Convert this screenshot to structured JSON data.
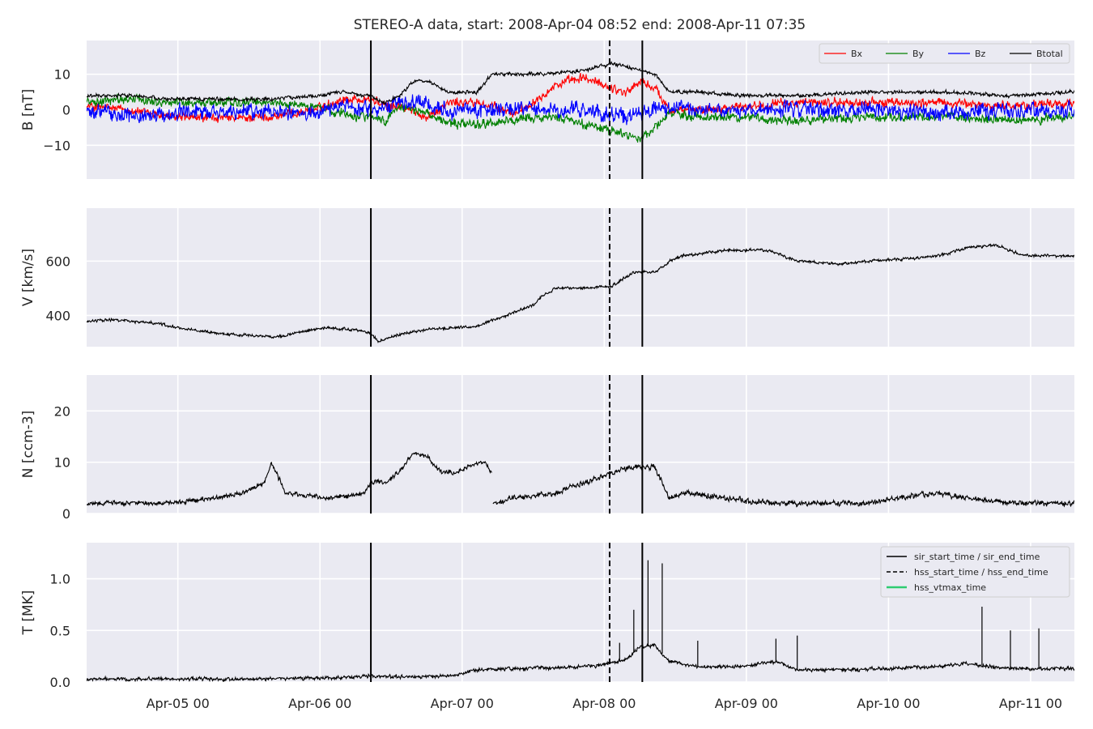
{
  "title": "STEREO-A data, start: 2008-Apr-04 08:52  end: 2008-Apr-11 07:35",
  "chart_data": [
    {
      "type": "line",
      "id": "b",
      "ylabel": "B [nT]",
      "ylim": [
        -19.5,
        19.5
      ],
      "yticks": [
        -10,
        0,
        10
      ],
      "ytick_labels": [
        "−10",
        "0",
        "10"
      ],
      "grid": true,
      "legend_position": "top-right",
      "series": [
        {
          "name": "Bx",
          "color": "#ff0000",
          "noise": 1.5,
          "x": [
            0,
            0.3,
            0.6,
            1.0,
            1.3,
            1.6,
            1.8,
            2.0,
            2.1,
            2.2,
            2.4,
            2.55,
            2.75,
            3.0,
            3.1,
            3.3,
            3.5,
            3.7,
            3.8,
            3.9,
            4.0,
            4.1,
            4.3,
            4.6,
            5.0,
            5.5,
            6.0,
            6.5,
            6.95
          ],
          "y": [
            1,
            0,
            -2,
            -2.5,
            -2,
            0,
            3,
            3,
            1,
            1,
            -2,
            2,
            2,
            -1,
            1,
            7,
            9,
            6,
            5,
            8,
            6,
            0,
            0,
            1,
            2,
            2,
            2,
            1,
            2
          ]
        },
        {
          "name": "By",
          "color": "#008000",
          "noise": 1.5,
          "x": [
            0,
            0.3,
            0.6,
            1.0,
            1.3,
            1.6,
            1.8,
            2.0,
            2.1,
            2.2,
            2.4,
            2.55,
            2.75,
            3.0,
            3.3,
            3.5,
            3.7,
            3.8,
            3.9,
            4.0,
            4.1,
            4.3,
            4.6,
            5.0,
            5.5,
            6.0,
            6.5,
            6.95
          ],
          "y": [
            2,
            3,
            2,
            2,
            2,
            1,
            -1,
            -2,
            -3,
            1,
            -1,
            -4,
            -4,
            -3,
            -2,
            -4,
            -6,
            -7,
            -8,
            -5,
            -1,
            -2,
            -2,
            -3,
            -2,
            -2,
            -3,
            -2
          ]
        },
        {
          "name": "Bz",
          "color": "#0000ff",
          "noise": 2.5,
          "x": [
            0,
            0.3,
            0.6,
            1.0,
            1.3,
            1.6,
            1.8,
            2.0,
            2.1,
            2.2,
            2.4,
            2.55,
            2.75,
            3.0,
            3.3,
            3.5,
            3.8,
            4.0,
            4.1,
            4.3,
            4.6,
            5.0,
            5.5,
            6.0,
            6.5,
            6.95
          ],
          "y": [
            0,
            -2,
            -1,
            -1,
            0,
            -1,
            1,
            0,
            0,
            2,
            2,
            0,
            0,
            0,
            0,
            0,
            -2,
            0,
            0,
            0,
            0,
            0,
            0,
            -1,
            0,
            0
          ]
        },
        {
          "name": "Btotal",
          "color": "#000000",
          "noise": 0.6,
          "x": [
            0,
            0.3,
            0.6,
            1.0,
            1.3,
            1.6,
            1.8,
            2.0,
            2.1,
            2.2,
            2.3,
            2.4,
            2.55,
            2.75,
            2.85,
            3.0,
            3.2,
            3.5,
            3.7,
            3.9,
            4.0,
            4.1,
            4.3,
            4.6,
            5.0,
            5.5,
            6.0,
            6.5,
            6.95
          ],
          "y": [
            4,
            4,
            3,
            3,
            3,
            4,
            5,
            4,
            2,
            4,
            8,
            8,
            5,
            5,
            10,
            10,
            10,
            11,
            13,
            11,
            10,
            5,
            5,
            4,
            4,
            5,
            5,
            4,
            5
          ]
        }
      ]
    },
    {
      "type": "line",
      "id": "v",
      "ylabel": "V [km/s]",
      "ylim": [
        285,
        795
      ],
      "yticks": [
        400,
        600
      ],
      "ytick_labels": [
        "400",
        "600"
      ],
      "grid": true,
      "series": [
        {
          "color": "#000000",
          "noise": 6,
          "x": [
            0,
            0.2,
            0.5,
            0.7,
            1.0,
            1.35,
            1.5,
            1.7,
            1.9,
            2.0,
            2.05,
            2.2,
            2.4,
            2.6,
            2.75,
            2.9,
            3.0,
            3.15,
            3.2,
            3.3,
            3.5,
            3.7,
            3.85,
            4.0,
            4.1,
            4.2,
            4.5,
            4.8,
            5.0,
            5.3,
            5.5,
            5.8,
            6.0,
            6.2,
            6.4,
            6.6,
            6.95
          ],
          "y": [
            380,
            385,
            370,
            350,
            330,
            320,
            340,
            355,
            345,
            335,
            305,
            330,
            350,
            355,
            360,
            390,
            410,
            440,
            470,
            500,
            500,
            510,
            560,
            560,
            600,
            620,
            640,
            640,
            600,
            590,
            600,
            610,
            620,
            650,
            660,
            620,
            620
          ]
        }
      ]
    },
    {
      "type": "line",
      "id": "n",
      "ylabel": "N [ccm-3]",
      "ylim": [
        0,
        27
      ],
      "yticks": [
        0,
        10,
        20
      ],
      "ytick_labels": [
        "0",
        "10",
        "20"
      ],
      "grid": true,
      "series": [
        {
          "color": "#000000",
          "noise": 0.5,
          "x": [
            0,
            0.3,
            0.6,
            0.9,
            1.1,
            1.25,
            1.3,
            1.4,
            1.7,
            1.95,
            2.0,
            2.1,
            2.2,
            2.3,
            2.4,
            2.5,
            2.6,
            2.75,
            2.8,
            2.85
          ],
          "y": [
            2,
            2,
            2,
            3,
            4,
            6,
            10,
            4,
            3,
            4,
            6,
            6,
            8,
            12,
            11,
            8,
            8,
            10,
            10,
            8
          ]
        },
        {
          "color": "#000000",
          "noise": 0.6,
          "x": [
            2.86,
            3.0,
            3.3,
            3.6,
            3.8,
            4.0,
            4.1,
            4.2,
            4.5,
            4.8,
            5.0,
            5.3,
            5.5,
            5.7,
            6.0,
            6.2,
            6.5,
            6.95
          ],
          "y": [
            2,
            3,
            4,
            7,
            9,
            9,
            3,
            4,
            3,
            2,
            2,
            2,
            2,
            3,
            4,
            3,
            2,
            2
          ]
        }
      ]
    },
    {
      "type": "line",
      "id": "t",
      "ylabel": "T [MK]",
      "ylim": [
        0,
        1.35
      ],
      "yticks": [
        0.0,
        0.5,
        1.0
      ],
      "ytick_labels": [
        "0.0",
        "0.5",
        "1.0"
      ],
      "grid": true,
      "legend_position": "top-right",
      "series": [
        {
          "color": "#000000",
          "noise": 0.02,
          "x": [
            0,
            0.5,
            1.0,
            1.3,
            1.7,
            1.9,
            2.0,
            2.2,
            2.4,
            2.6,
            2.75,
            3.0,
            3.3,
            3.6,
            3.8,
            3.9,
            4.0,
            4.1,
            4.3,
            4.6,
            4.85,
            5.0,
            5.3,
            5.6,
            6.0,
            6.2,
            6.5,
            6.95
          ],
          "y": [
            0.03,
            0.03,
            0.03,
            0.03,
            0.04,
            0.05,
            0.06,
            0.05,
            0.05,
            0.07,
            0.12,
            0.13,
            0.14,
            0.16,
            0.22,
            0.35,
            0.35,
            0.2,
            0.15,
            0.15,
            0.2,
            0.12,
            0.12,
            0.13,
            0.15,
            0.18,
            0.13,
            0.13
          ]
        }
      ],
      "spikes": [
        [
          3.95,
          1.18
        ],
        [
          4.05,
          1.15
        ],
        [
          3.85,
          0.7
        ],
        [
          4.3,
          0.4
        ],
        [
          4.85,
          0.42
        ],
        [
          5.0,
          0.45
        ],
        [
          6.3,
          0.73
        ],
        [
          6.5,
          0.5
        ],
        [
          6.7,
          0.52
        ],
        [
          3.75,
          0.38
        ]
      ]
    }
  ],
  "x_axis": {
    "ticks": [
      0.642,
      1.642,
      2.642,
      3.642,
      4.642,
      5.642,
      6.642
    ],
    "tick_labels": [
      "Apr-05 00",
      "Apr-06 00",
      "Apr-07 00",
      "Apr-08 00",
      "Apr-09 00",
      "Apr-10 00",
      "Apr-11 00"
    ],
    "xlim": [
      0,
      6.95
    ]
  },
  "markers": {
    "sir_start": 2.0,
    "hss_start": 3.68,
    "sir_end": 3.91
  },
  "legend_b": {
    "items": [
      "Bx",
      "By",
      "Bz",
      "Btotal"
    ]
  },
  "legend_t": {
    "items": [
      {
        "label": "sir_start_time / sir_end_time",
        "style": "solid",
        "color": "#000000"
      },
      {
        "label": "hss_start_time / hss_end_time",
        "style": "dashed",
        "color": "#000000"
      },
      {
        "label": "hss_vtmax_time",
        "style": "solid",
        "color": "#2ecc71"
      }
    ]
  },
  "colors": {
    "panel_background": "#eaeaf2",
    "grid": "#ffffff"
  }
}
